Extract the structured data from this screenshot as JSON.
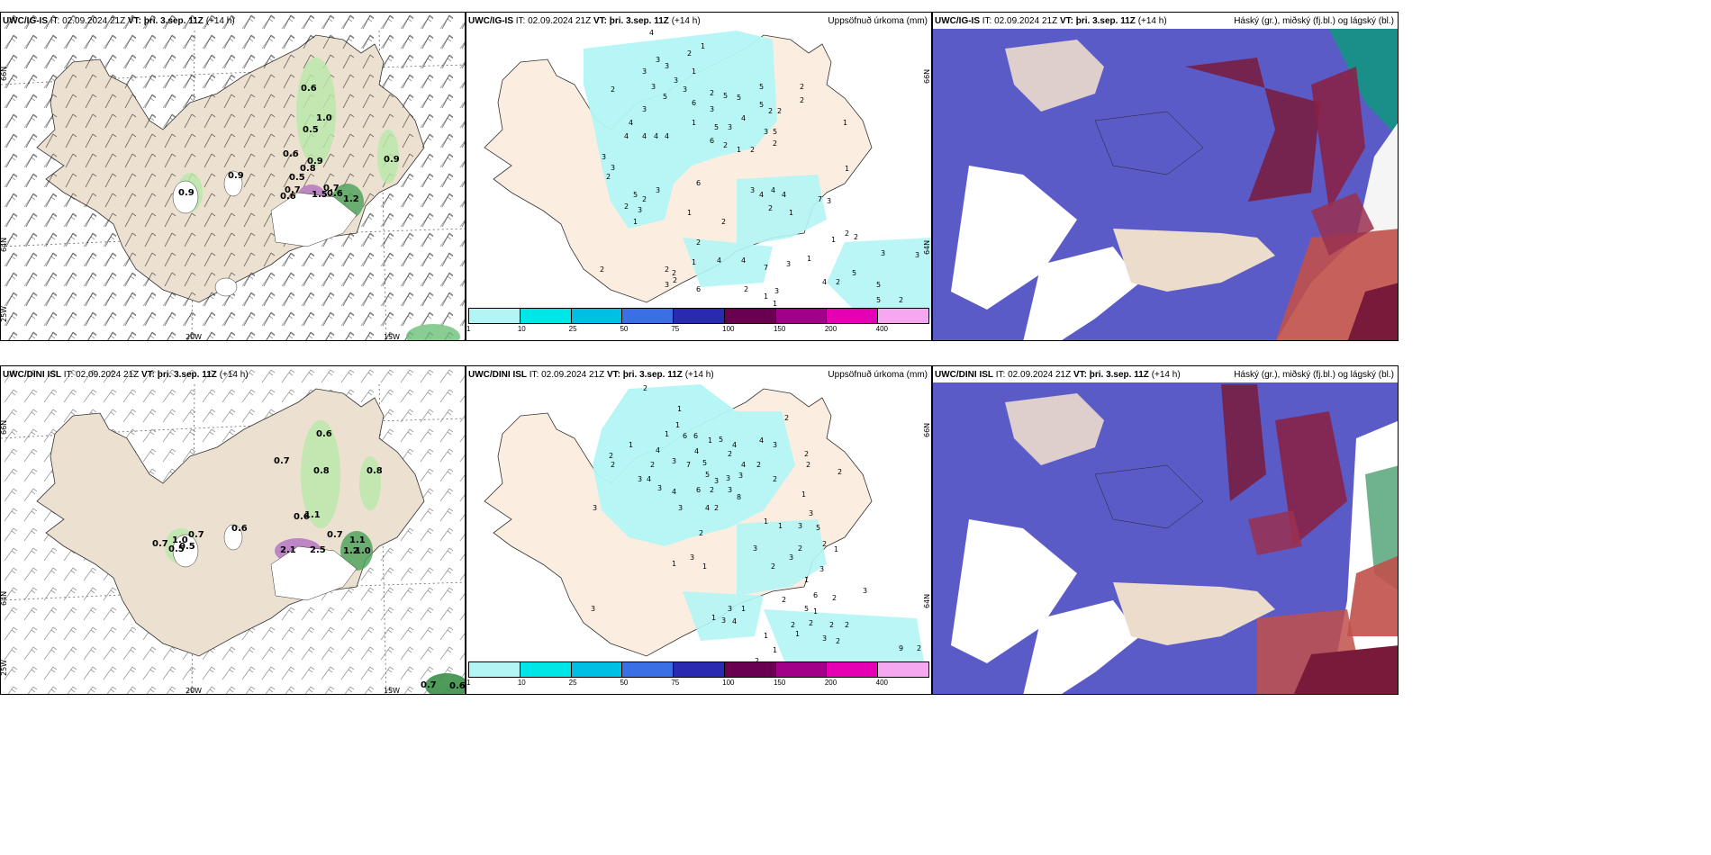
{
  "panels": {
    "p1": {
      "model": "UWC/IG-IS",
      "it_label": "IT:",
      "it": "02.09.2024 21Z",
      "vt_label": "VT:",
      "vt": "þri. 3.sep. 11Z",
      "lead": "(+14 h)",
      "legend": ""
    },
    "p2": {
      "model": "UWC/IG-IS",
      "it_label": "IT:",
      "it": "02.09.2024 21Z",
      "vt_label": "VT:",
      "vt": "þri. 3.sep. 11Z",
      "lead": "(+14 h)",
      "legend": "Uppsöfnuð úrkoma (mm)"
    },
    "p3": {
      "model": "UWC/IG-IS",
      "it_label": "IT:",
      "it": "02.09.2024 21Z",
      "vt_label": "VT:",
      "vt": "þri. 3.sep. 11Z",
      "lead": "(+14 h)",
      "legend": "Háský (gr.), miðský (fj.bl.) og lágský (bl.)"
    },
    "p4": {
      "model": "UWC/DINI ISL",
      "it_label": "IT:",
      "it": "02.09.2024 21Z",
      "vt_label": "VT:",
      "vt": "þri. 3.sep. 11Z",
      "lead": "(+14 h)",
      "legend": ""
    },
    "p5": {
      "model": "UWC/DINI ISL",
      "it_label": "IT:",
      "it": "02.09.2024 21Z",
      "vt_label": "VT:",
      "vt": "þri. 3.sep. 11Z",
      "lead": "(+14 h)",
      "legend": "Uppsöfnuð úrkoma (mm)"
    },
    "p6": {
      "model": "UWC/DINI ISL",
      "it_label": "IT:",
      "it": "02.09.2024 21Z",
      "vt_label": "VT:",
      "vt": "þri. 3.sep. 11Z",
      "lead": "(+14 h)",
      "legend": "Háský (gr.), miðský (fj.bl.) og lágský (bl.)"
    }
  },
  "axes": {
    "lon": [
      "20W",
      "15W"
    ],
    "lat": [
      "66N",
      "64N",
      "25W"
    ]
  },
  "colorbar": {
    "labels": [
      "1",
      "10",
      "25",
      "50",
      "75",
      "100",
      "150",
      "200",
      "400"
    ],
    "colors": [
      "#b3f5f5",
      "#00e5e5",
      "#00bfe5",
      "#3a6fe5",
      "#2a2ab0",
      "#6a0050",
      "#a3008a",
      "#e600b3",
      "#f5a8f0"
    ]
  },
  "gust_labels_top": [
    "0.6",
    "1.0",
    "0.5",
    "0.6",
    "0.9",
    "0.8",
    "0.5",
    "0.9",
    "0.9",
    "0.9",
    "0.7",
    "0.6",
    "0.7",
    "1.5",
    "0.6",
    "1.2"
  ],
  "gust_labels_bottom": [
    "0.6",
    "0.7",
    "0.8",
    "0.8",
    "0.6",
    "1.1",
    "0.7",
    "0.7",
    "1.0",
    "0.7",
    "0.5",
    "0.5",
    "0.6",
    "2.1",
    "2.5",
    "1.1",
    "1.2",
    "1.0",
    "0.7",
    "0.6"
  ],
  "precip_top": [
    "4",
    "1",
    "2",
    "3",
    "3",
    "3",
    "1",
    "3",
    "3",
    "2",
    "3",
    "5",
    "2",
    "5",
    "2",
    "3",
    "5",
    "6",
    "3",
    "5",
    "5",
    "2",
    "4",
    "2",
    "1",
    "4",
    "1",
    "4",
    "4",
    "4",
    "5",
    "3",
    "4",
    "3",
    "2",
    "5",
    "6",
    "2",
    "1",
    "2",
    "2",
    "1",
    "3",
    "3",
    "2",
    "5",
    "2",
    "6",
    "3",
    "2",
    "3",
    "3",
    "4",
    "4",
    "4",
    "7",
    "3",
    "1",
    "1",
    "1",
    "2",
    "2",
    "2",
    "1",
    "2",
    "2",
    "2",
    "4",
    "4",
    "7",
    "3",
    "1",
    "3",
    "3",
    "2",
    "2",
    "1",
    "3",
    "2",
    "4",
    "2",
    "5",
    "3",
    "5",
    "2",
    "6",
    "1",
    "5",
    "1",
    "2"
  ],
  "precip_bottom": [
    "2",
    "1",
    "1",
    "2",
    "1",
    "1",
    "6",
    "6",
    "1",
    "5",
    "4",
    "2",
    "4",
    "4",
    "2",
    "4",
    "3",
    "2",
    "2",
    "2",
    "3",
    "7",
    "5",
    "4",
    "2",
    "2",
    "2",
    "3",
    "4",
    "3",
    "5",
    "3",
    "3",
    "3",
    "2",
    "4",
    "6",
    "2",
    "3",
    "1",
    "3",
    "3",
    "4",
    "2",
    "8",
    "3",
    "1",
    "1",
    "3",
    "5",
    "2",
    "2",
    "3",
    "1",
    "3",
    "2",
    "3",
    "1",
    "1",
    "3",
    "2",
    "1",
    "3",
    "2",
    "6",
    "2",
    "3",
    "3",
    "1",
    "5",
    "1",
    "1",
    "3",
    "4",
    "2",
    "2",
    "2",
    "2",
    "1",
    "1",
    "3",
    "2",
    "1",
    "9",
    "2",
    "2",
    "1",
    "1",
    "2"
  ]
}
